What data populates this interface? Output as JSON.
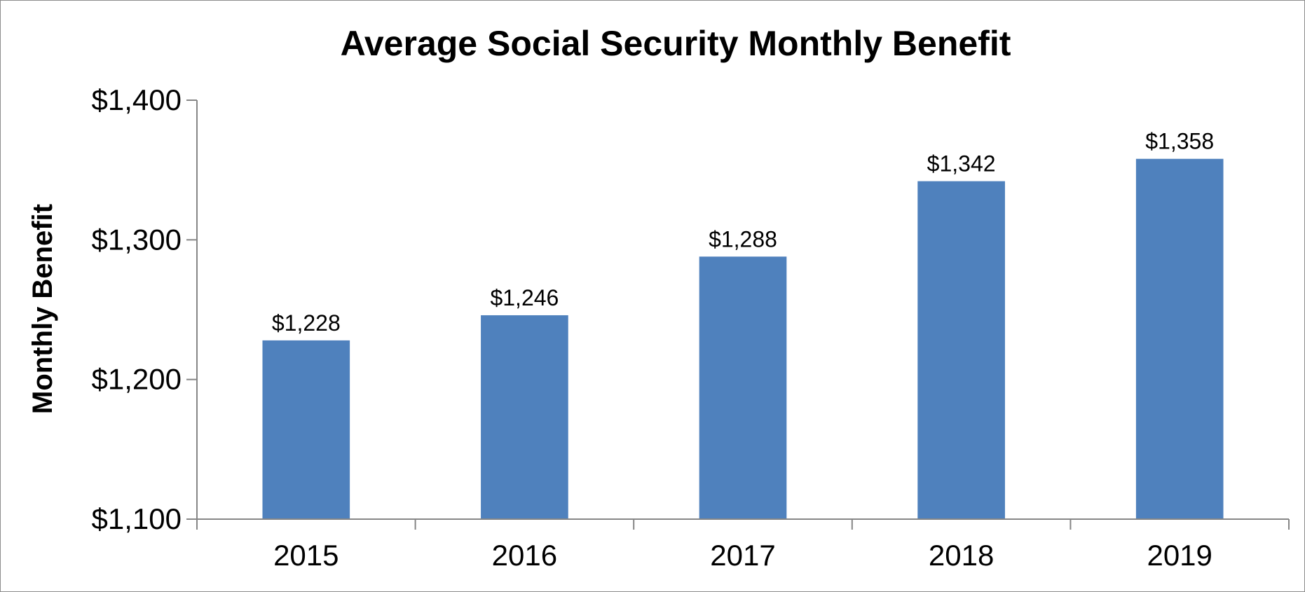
{
  "chart_data": {
    "type": "bar",
    "title": "Average Social Security Monthly Benefit",
    "xlabel": "",
    "ylabel": "Monthly Benefit",
    "categories": [
      "2015",
      "2016",
      "2017",
      "2018",
      "2019"
    ],
    "values": [
      1228,
      1246,
      1288,
      1342,
      1358
    ],
    "data_labels": [
      "$1,228",
      "$1,246",
      "$1,288",
      "$1,342",
      "$1,358"
    ],
    "ylim": [
      1100,
      1400
    ],
    "yticks": [
      1100,
      1200,
      1300,
      1400
    ],
    "ytick_labels": [
      "$1,100",
      "$1,200",
      "$1,300",
      "$1,400"
    ],
    "grid": false,
    "legend": "none",
    "bar_color": "#4F81BD"
  }
}
